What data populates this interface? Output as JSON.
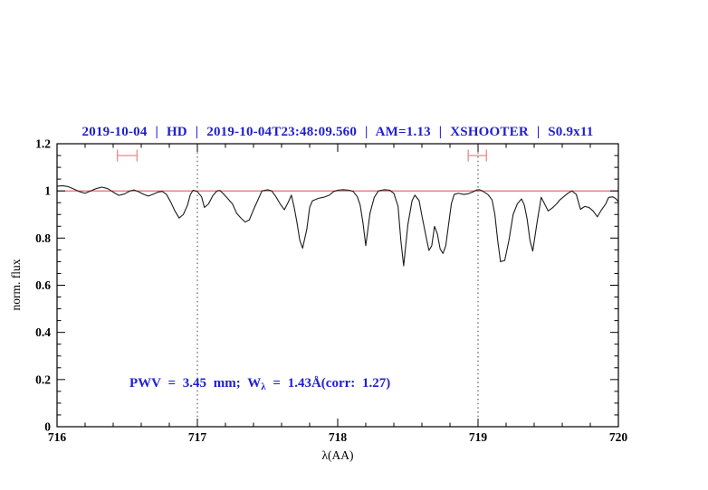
{
  "header": {
    "title": "2019-10-04 | HD | 2019-10-04T23:48:09.560 | AM=1.13 | XSHOOTER | S0.9x11",
    "color": "#1f1fd2"
  },
  "annotation": {
    "prefix": "PWV = 3.45 mm; W",
    "subscript": "λ",
    "suffix": " = 1.43Å(corr: 1.27)",
    "color": "#1f1fd2"
  },
  "chart_data": {
    "type": "line",
    "title": "2019-10-04 | HD | 2019-10-04T23:48:09.560 | AM=1.13 | XSHOOTER | S0.9x11",
    "xlabel": "λ(AA)",
    "ylabel": "norm. flux",
    "xlim": [
      716,
      720
    ],
    "ylim": [
      0,
      1.2
    ],
    "x_ticks": [
      716,
      717,
      718,
      719,
      720
    ],
    "x_tick_labels": [
      "716",
      "717",
      "718",
      "719",
      "720"
    ],
    "x_minor_step": 0.2,
    "y_ticks": [
      0,
      0.2,
      0.4,
      0.6,
      0.8,
      1,
      1.2
    ],
    "y_tick_labels": [
      "0",
      "0.2",
      "0.4",
      "0.6",
      "0.8",
      "1",
      "1.2"
    ],
    "y_minor_step": 0.05,
    "grid": false,
    "legend": "none",
    "dotted_vlines": {
      "x": [
        717,
        719
      ],
      "color": "#3c3c3c"
    },
    "continuum_line": {
      "y": 1.0,
      "color": "#e25b5b"
    },
    "range_markers": {
      "color": "#f0908f",
      "y": 1.15,
      "cap_halfheight_flux": 0.025,
      "items": [
        {
          "x_min": 716.43,
          "x_max": 716.57
        },
        {
          "x_min": 718.93,
          "x_max": 719.06
        }
      ]
    },
    "series": [
      {
        "name": "normalized spectrum",
        "color": "#1c1c1c",
        "x": [
          716.0,
          716.04,
          716.08,
          716.12,
          716.16,
          716.2,
          716.24,
          716.28,
          716.32,
          716.36,
          716.4,
          716.44,
          716.48,
          716.52,
          716.55,
          716.58,
          716.62,
          716.65,
          716.68,
          716.72,
          716.75,
          716.78,
          716.81,
          716.84,
          716.87,
          716.9,
          716.93,
          716.95,
          716.97,
          717.0,
          717.03,
          717.05,
          717.08,
          717.11,
          717.14,
          717.16,
          717.19,
          717.22,
          717.25,
          717.28,
          717.31,
          717.34,
          717.37,
          717.4,
          717.43,
          717.46,
          717.5,
          717.53,
          717.56,
          717.59,
          717.62,
          717.65,
          717.67,
          717.69,
          717.71,
          717.73,
          717.75,
          717.78,
          717.8,
          717.82,
          717.86,
          717.9,
          717.94,
          717.97,
          718.0,
          718.04,
          718.08,
          718.11,
          718.14,
          718.16,
          718.18,
          718.2,
          718.23,
          718.26,
          718.29,
          718.33,
          718.37,
          718.4,
          718.43,
          718.45,
          718.47,
          718.5,
          718.53,
          718.55,
          718.58,
          718.6,
          718.63,
          718.65,
          718.67,
          718.69,
          718.71,
          718.73,
          718.75,
          718.77,
          718.79,
          718.81,
          718.83,
          718.86,
          718.9,
          718.93,
          718.96,
          718.99,
          719.01,
          719.03,
          719.07,
          719.1,
          719.12,
          719.14,
          719.16,
          719.19,
          719.22,
          719.25,
          719.28,
          719.31,
          719.33,
          719.35,
          719.37,
          719.39,
          719.42,
          719.45,
          719.47,
          719.5,
          719.53,
          719.56,
          719.58,
          719.61,
          719.64,
          719.67,
          719.7,
          719.73,
          719.76,
          719.79,
          719.82,
          719.85,
          719.88,
          719.91,
          719.93,
          719.96,
          719.98,
          720.0
        ],
        "y": [
          1.02,
          1.022,
          1.018,
          1.008,
          0.997,
          0.99,
          1.0,
          1.01,
          1.016,
          1.01,
          0.995,
          0.981,
          0.987,
          1.0,
          1.004,
          0.997,
          0.985,
          0.978,
          0.985,
          0.995,
          0.998,
          0.985,
          0.953,
          0.915,
          0.885,
          0.9,
          0.94,
          0.985,
          1.003,
          0.997,
          0.975,
          0.93,
          0.945,
          0.98,
          1.0,
          1.002,
          0.985,
          0.965,
          0.945,
          0.905,
          0.885,
          0.868,
          0.877,
          0.92,
          0.96,
          1.0,
          1.005,
          1.0,
          0.975,
          0.945,
          0.92,
          0.955,
          0.982,
          0.93,
          0.865,
          0.79,
          0.757,
          0.838,
          0.93,
          0.958,
          0.968,
          0.973,
          0.982,
          0.997,
          1.003,
          1.005,
          1.003,
          0.998,
          0.975,
          0.94,
          0.865,
          0.768,
          0.905,
          0.972,
          1.0,
          1.005,
          1.003,
          0.99,
          0.935,
          0.79,
          0.682,
          0.857,
          0.959,
          0.982,
          0.959,
          0.895,
          0.805,
          0.748,
          0.767,
          0.85,
          0.818,
          0.754,
          0.735,
          0.767,
          0.857,
          0.946,
          0.985,
          0.99,
          0.985,
          0.988,
          0.995,
          1.004,
          1.005,
          1.0,
          0.985,
          0.962,
          0.9,
          0.79,
          0.7,
          0.705,
          0.79,
          0.9,
          0.945,
          0.966,
          0.94,
          0.88,
          0.79,
          0.745,
          0.864,
          0.973,
          0.95,
          0.915,
          0.928,
          0.945,
          0.96,
          0.975,
          0.99,
          1.0,
          0.985,
          0.922,
          0.934,
          0.93,
          0.915,
          0.89,
          0.92,
          0.945,
          0.972,
          0.975,
          0.968,
          0.955
        ]
      }
    ]
  }
}
